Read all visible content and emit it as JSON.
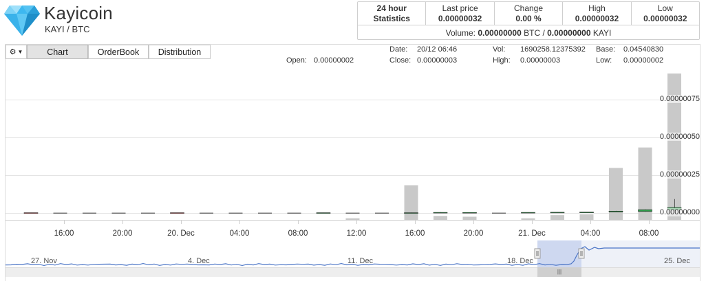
{
  "coin": {
    "name": "Kayicoin",
    "pair": "KAYI / BTC",
    "logo_icon": "diamond-icon",
    "logo_color": "#3db8f0"
  },
  "stats": {
    "title": "24 hour Statistics",
    "last_price_label": "Last price",
    "last_price": "0.00000032",
    "change_label": "Change",
    "change": "0.00 %",
    "high_label": "High",
    "high": "0.00000032",
    "low_label": "Low",
    "low": "0.00000032",
    "volume_label": "Volume:",
    "volume_btc": "0.00000000",
    "volume_btc_unit": "BTC /",
    "volume_kayi": "0.00000000",
    "volume_kayi_unit": "KAYI"
  },
  "toolbar": {
    "gear_icon": "gear-icon",
    "chart_label": "Chart",
    "orderbook_label": "OrderBook",
    "distribution_label": "Distribution"
  },
  "ohlc": {
    "open_label": "Open:",
    "open": "0.00000002",
    "date_label": "Date:",
    "date": "20/12 06:46",
    "close_label": "Close:",
    "close": "0.00000003",
    "vol_label": "Vol:",
    "vol": "1690258.12375392",
    "high_label": "High:",
    "high": "0.00000003",
    "base_label": "Base:",
    "base": "0.04540830",
    "low_label": "Low:",
    "low": "0.00000002"
  },
  "chart_data": {
    "type": "candlestick",
    "y_ticks": [
      "0.00000000",
      "0.00000025",
      "0.00000050",
      "0.00000075"
    ],
    "ylim": [
      0,
      9.5e-07
    ],
    "x_ticks": [
      "16:00",
      "20:00",
      "20. Dec",
      "04:00",
      "08:00",
      "12:00",
      "16:00",
      "20:00",
      "21. Dec",
      "04:00",
      "08:00"
    ],
    "up_color": "#2e9e4b",
    "down_color": "#c94040",
    "volume_color": "#c9c9c9",
    "candles": [
      {
        "o": 2e-09,
        "h": 2e-09,
        "l": 1e-09,
        "c": 1e-09,
        "v": 0
      },
      {
        "o": 1.5e-09,
        "h": 1.5e-09,
        "l": 1.5e-09,
        "c": 1.5e-09,
        "v": 0
      },
      {
        "o": 1.5e-09,
        "h": 1.5e-09,
        "l": 1.5e-09,
        "c": 1.5e-09,
        "v": 0
      },
      {
        "o": 1.5e-09,
        "h": 1.5e-09,
        "l": 1.5e-09,
        "c": 1.5e-09,
        "v": 0
      },
      {
        "o": 1.5e-09,
        "h": 1.5e-09,
        "l": 1.5e-09,
        "c": 1.5e-09,
        "v": 0
      },
      {
        "o": 2e-09,
        "h": 2e-09,
        "l": 1e-09,
        "c": 1e-09,
        "v": 0
      },
      {
        "o": 1.5e-09,
        "h": 1.5e-09,
        "l": 1.5e-09,
        "c": 1.5e-09,
        "v": 0
      },
      {
        "o": 1.5e-09,
        "h": 1.5e-09,
        "l": 1.5e-09,
        "c": 1.5e-09,
        "v": 0
      },
      {
        "o": 1.5e-09,
        "h": 1.5e-09,
        "l": 1.5e-09,
        "c": 1.5e-09,
        "v": 0
      },
      {
        "o": 1.5e-09,
        "h": 1.5e-09,
        "l": 1.5e-09,
        "c": 1.5e-09,
        "v": 0
      },
      {
        "o": 1e-09,
        "h": 2e-09,
        "l": 1e-09,
        "c": 2e-09,
        "v": 0
      },
      {
        "o": 1.5e-09,
        "h": 1.5e-09,
        "l": 1.5e-09,
        "c": 1.5e-09,
        "v": 0.02
      },
      {
        "o": 1.5e-09,
        "h": 1.5e-09,
        "l": 1.5e-09,
        "c": 1.5e-09,
        "v": 0
      },
      {
        "o": 1.5e-09,
        "h": 3e-09,
        "l": 1.5e-09,
        "c": 2e-09,
        "v": 0.44
      },
      {
        "o": 2e-09,
        "h": 5e-09,
        "l": 2e-09,
        "c": 4e-09,
        "v": 0.05
      },
      {
        "o": 3e-09,
        "h": 3.5e-09,
        "l": 3e-09,
        "c": 3.5e-09,
        "v": 0.04
      },
      {
        "o": 1.5e-09,
        "h": 1.5e-09,
        "l": 1.5e-09,
        "c": 1.5e-09,
        "v": 0
      },
      {
        "o": 2e-09,
        "h": 4e-09,
        "l": 1e-09,
        "c": 4e-09,
        "v": 0.02
      },
      {
        "o": 3e-09,
        "h": 5e-09,
        "l": 2.5e-09,
        "c": 5e-09,
        "v": 0.06
      },
      {
        "o": 4e-09,
        "h": 6e-09,
        "l": 4e-09,
        "c": 6e-09,
        "v": 0.07
      },
      {
        "o": 6e-09,
        "h": 1.4e-08,
        "l": 5e-09,
        "c": 1.2e-08,
        "v": 0.66
      },
      {
        "o": 1e-08,
        "h": 2.4e-08,
        "l": 8e-09,
        "c": 2.2e-08,
        "v": 0.92
      },
      {
        "o": 2.1e-08,
        "h": 9.2e-08,
        "l": 1.5e-08,
        "c": 3.6e-08,
        "v": 1.86
      }
    ],
    "navigator": {
      "labels": [
        "27. Nov",
        "4. Dec",
        "11. Dec",
        "18. Dec",
        "25. Dec"
      ],
      "line_color": "#4a74c6",
      "highlight_color": "#b9c7ea"
    }
  }
}
